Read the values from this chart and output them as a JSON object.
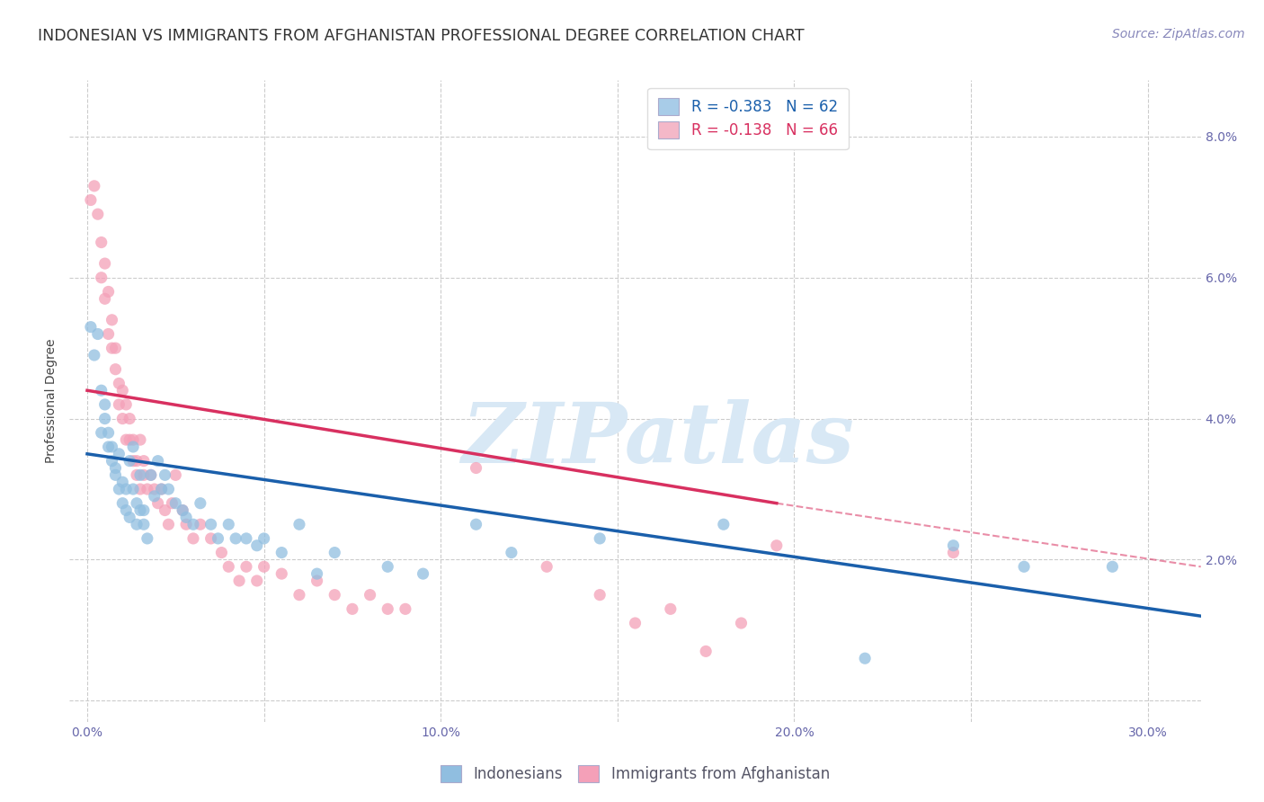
{
  "title": "INDONESIAN VS IMMIGRANTS FROM AFGHANISTAN PROFESSIONAL DEGREE CORRELATION CHART",
  "source": "Source: ZipAtlas.com",
  "ylabel": "Professional Degree",
  "watermark": "ZIPatlas",
  "legend_R1": "R = -0.383",
  "legend_N1": "N = 62",
  "legend_R2": "R = -0.138",
  "legend_N2": "N = 66",
  "legend_label1": "Indonesians",
  "legend_label2": "Immigrants from Afghanistan",
  "x_ticks": [
    0.0,
    0.05,
    0.1,
    0.15,
    0.2,
    0.25,
    0.3
  ],
  "x_tick_labels": [
    "0.0%",
    "",
    "10.0%",
    "",
    "20.0%",
    "",
    "30.0%"
  ],
  "y_ticks": [
    0.0,
    0.02,
    0.04,
    0.06,
    0.08
  ],
  "y_right_labels": [
    "",
    "2.0%",
    "4.0%",
    "6.0%",
    "8.0%"
  ],
  "xlim": [
    -0.005,
    0.315
  ],
  "ylim": [
    -0.003,
    0.088
  ],
  "blue_scatter": [
    [
      0.001,
      0.053
    ],
    [
      0.002,
      0.049
    ],
    [
      0.003,
      0.052
    ],
    [
      0.004,
      0.044
    ],
    [
      0.004,
      0.038
    ],
    [
      0.005,
      0.04
    ],
    [
      0.005,
      0.042
    ],
    [
      0.006,
      0.038
    ],
    [
      0.006,
      0.036
    ],
    [
      0.007,
      0.034
    ],
    [
      0.007,
      0.036
    ],
    [
      0.008,
      0.033
    ],
    [
      0.008,
      0.032
    ],
    [
      0.009,
      0.035
    ],
    [
      0.009,
      0.03
    ],
    [
      0.01,
      0.028
    ],
    [
      0.01,
      0.031
    ],
    [
      0.011,
      0.027
    ],
    [
      0.011,
      0.03
    ],
    [
      0.012,
      0.026
    ],
    [
      0.012,
      0.034
    ],
    [
      0.013,
      0.036
    ],
    [
      0.013,
      0.03
    ],
    [
      0.014,
      0.028
    ],
    [
      0.014,
      0.025
    ],
    [
      0.015,
      0.027
    ],
    [
      0.015,
      0.032
    ],
    [
      0.016,
      0.025
    ],
    [
      0.016,
      0.027
    ],
    [
      0.017,
      0.023
    ],
    [
      0.018,
      0.032
    ],
    [
      0.019,
      0.029
    ],
    [
      0.02,
      0.034
    ],
    [
      0.021,
      0.03
    ],
    [
      0.022,
      0.032
    ],
    [
      0.023,
      0.03
    ],
    [
      0.025,
      0.028
    ],
    [
      0.027,
      0.027
    ],
    [
      0.028,
      0.026
    ],
    [
      0.03,
      0.025
    ],
    [
      0.032,
      0.028
    ],
    [
      0.035,
      0.025
    ],
    [
      0.037,
      0.023
    ],
    [
      0.04,
      0.025
    ],
    [
      0.042,
      0.023
    ],
    [
      0.045,
      0.023
    ],
    [
      0.048,
      0.022
    ],
    [
      0.05,
      0.023
    ],
    [
      0.055,
      0.021
    ],
    [
      0.06,
      0.025
    ],
    [
      0.065,
      0.018
    ],
    [
      0.07,
      0.021
    ],
    [
      0.085,
      0.019
    ],
    [
      0.095,
      0.018
    ],
    [
      0.11,
      0.025
    ],
    [
      0.12,
      0.021
    ],
    [
      0.145,
      0.023
    ],
    [
      0.18,
      0.025
    ],
    [
      0.22,
      0.006
    ],
    [
      0.245,
      0.022
    ],
    [
      0.265,
      0.019
    ],
    [
      0.29,
      0.019
    ]
  ],
  "pink_scatter": [
    [
      0.001,
      0.071
    ],
    [
      0.002,
      0.073
    ],
    [
      0.003,
      0.069
    ],
    [
      0.004,
      0.065
    ],
    [
      0.004,
      0.06
    ],
    [
      0.005,
      0.057
    ],
    [
      0.005,
      0.062
    ],
    [
      0.006,
      0.058
    ],
    [
      0.006,
      0.052
    ],
    [
      0.007,
      0.054
    ],
    [
      0.007,
      0.05
    ],
    [
      0.008,
      0.047
    ],
    [
      0.008,
      0.05
    ],
    [
      0.009,
      0.045
    ],
    [
      0.009,
      0.042
    ],
    [
      0.01,
      0.04
    ],
    [
      0.01,
      0.044
    ],
    [
      0.011,
      0.042
    ],
    [
      0.011,
      0.037
    ],
    [
      0.012,
      0.04
    ],
    [
      0.012,
      0.037
    ],
    [
      0.013,
      0.034
    ],
    [
      0.013,
      0.037
    ],
    [
      0.014,
      0.034
    ],
    [
      0.014,
      0.032
    ],
    [
      0.015,
      0.03
    ],
    [
      0.015,
      0.037
    ],
    [
      0.016,
      0.034
    ],
    [
      0.016,
      0.032
    ],
    [
      0.017,
      0.03
    ],
    [
      0.018,
      0.032
    ],
    [
      0.019,
      0.03
    ],
    [
      0.02,
      0.028
    ],
    [
      0.021,
      0.03
    ],
    [
      0.022,
      0.027
    ],
    [
      0.023,
      0.025
    ],
    [
      0.024,
      0.028
    ],
    [
      0.025,
      0.032
    ],
    [
      0.027,
      0.027
    ],
    [
      0.028,
      0.025
    ],
    [
      0.03,
      0.023
    ],
    [
      0.032,
      0.025
    ],
    [
      0.035,
      0.023
    ],
    [
      0.038,
      0.021
    ],
    [
      0.04,
      0.019
    ],
    [
      0.043,
      0.017
    ],
    [
      0.045,
      0.019
    ],
    [
      0.048,
      0.017
    ],
    [
      0.05,
      0.019
    ],
    [
      0.055,
      0.018
    ],
    [
      0.06,
      0.015
    ],
    [
      0.065,
      0.017
    ],
    [
      0.07,
      0.015
    ],
    [
      0.075,
      0.013
    ],
    [
      0.08,
      0.015
    ],
    [
      0.085,
      0.013
    ],
    [
      0.09,
      0.013
    ],
    [
      0.11,
      0.033
    ],
    [
      0.13,
      0.019
    ],
    [
      0.145,
      0.015
    ],
    [
      0.155,
      0.011
    ],
    [
      0.165,
      0.013
    ],
    [
      0.175,
      0.007
    ],
    [
      0.185,
      0.011
    ],
    [
      0.195,
      0.022
    ],
    [
      0.245,
      0.021
    ]
  ],
  "blue_line": {
    "x": [
      0.0,
      0.315
    ],
    "y": [
      0.035,
      0.012
    ]
  },
  "pink_line_solid": {
    "x": [
      0.0,
      0.195
    ],
    "y": [
      0.044,
      0.028
    ]
  },
  "pink_line_dash": {
    "x": [
      0.195,
      0.315
    ],
    "y": [
      0.028,
      0.019
    ]
  },
  "dot_color_blue": "#90BEE0",
  "dot_color_pink": "#F4A0B8",
  "line_color_blue": "#1A5FAB",
  "line_color_pink": "#D83060",
  "legend_box_blue": "#A8CCE8",
  "legend_box_pink": "#F4B8C8",
  "bg_color": "#ffffff",
  "grid_color": "#cccccc",
  "watermark_color": "#d8e8f5",
  "title_fontsize": 12.5,
  "ylabel_fontsize": 10,
  "tick_fontsize": 10,
  "legend_fontsize": 12,
  "source_fontsize": 10
}
